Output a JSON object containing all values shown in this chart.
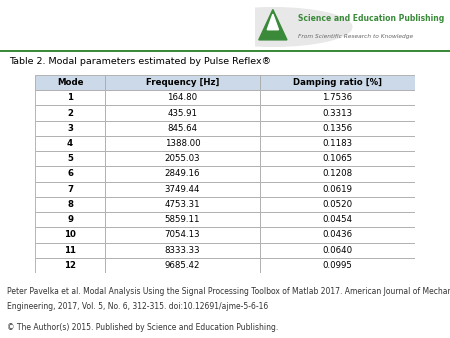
{
  "title": "Table 2. Modal parameters estimated by Pulse Reflex®",
  "headers": [
    "Mode",
    "Frequency [Hz]",
    "Damping ratio [%]"
  ],
  "rows": [
    [
      "1",
      "164.80",
      "1.7536"
    ],
    [
      "2",
      "435.91",
      "0.3313"
    ],
    [
      "3",
      "845.64",
      "0.1356"
    ],
    [
      "4",
      "1388.00",
      "0.1183"
    ],
    [
      "5",
      "2055.03",
      "0.1065"
    ],
    [
      "6",
      "2849.16",
      "0.1208"
    ],
    [
      "7",
      "3749.44",
      "0.0619"
    ],
    [
      "8",
      "4753.31",
      "0.0520"
    ],
    [
      "9",
      "5859.11",
      "0.0454"
    ],
    [
      "10",
      "7054.13",
      "0.0436"
    ],
    [
      "11",
      "8333.33",
      "0.0640"
    ],
    [
      "12",
      "9685.42",
      "0.0995"
    ]
  ],
  "footer_line1": "Peter Pavelka et al. Modal Analysis Using the Signal Processing Toolbox of Matlab 2017. American Journal of Mechanical",
  "footer_line2": "Engineering, 2017, Vol. 5, No. 6, 312-315. doi:10.12691/ajme-5-6-16",
  "footer_line3": "© The Author(s) 2015. Published by Science and Education Publishing.",
  "header_bg": "#ccd9e8",
  "header_text_color": "#000000",
  "table_border_color": "#aaaaaa",
  "row_text_color": "#000000",
  "bg_color": "#ffffff",
  "title_color": "#000000",
  "footer_color": "#333333",
  "logo_text1": "Science and Education Publishing",
  "logo_text2": "From Scientific Research to Knowledge",
  "logo_green": "#3a8a3a",
  "logo_circle_color": "#dddddd",
  "top_line_color": "#3a8a3a"
}
